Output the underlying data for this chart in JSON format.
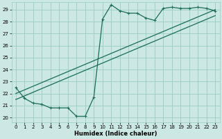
{
  "title": "",
  "xlabel": "Humidex (Indice chaleur)",
  "ylabel": "",
  "bg_color": "#cce8e4",
  "grid_color": "#99ccc4",
  "line_color": "#1a6b5a",
  "xlim": [
    -0.5,
    23.5
  ],
  "ylim": [
    19.6,
    29.6
  ],
  "yticks": [
    20,
    21,
    22,
    23,
    24,
    25,
    26,
    27,
    28,
    29
  ],
  "xticks": [
    0,
    1,
    2,
    3,
    4,
    5,
    6,
    7,
    8,
    9,
    10,
    11,
    12,
    13,
    14,
    15,
    16,
    17,
    18,
    19,
    20,
    21,
    22,
    23
  ],
  "line1_x": [
    0,
    1,
    2,
    3,
    4,
    5,
    6,
    7,
    8,
    9,
    10,
    11,
    12,
    13,
    14,
    15,
    16,
    17,
    18,
    19,
    20,
    21,
    22,
    23
  ],
  "line1_y": [
    22.5,
    21.6,
    21.2,
    21.1,
    20.8,
    20.8,
    20.8,
    20.1,
    20.1,
    21.7,
    28.2,
    29.4,
    28.9,
    28.7,
    28.7,
    28.3,
    28.1,
    29.1,
    29.2,
    29.1,
    29.1,
    29.2,
    29.1,
    28.9
  ],
  "line2_x": [
    0,
    23
  ],
  "line2_y": [
    22.0,
    29.0
  ],
  "line3_x": [
    0,
    23
  ],
  "line3_y": [
    21.5,
    28.5
  ]
}
